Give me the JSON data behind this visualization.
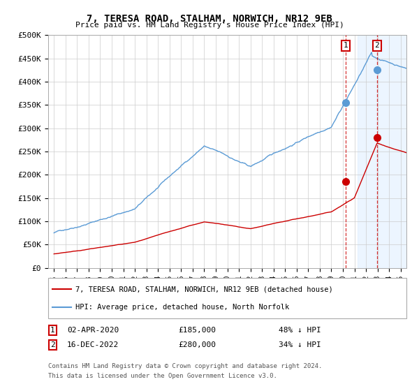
{
  "title": "7, TERESA ROAD, STALHAM, NORWICH, NR12 9EB",
  "subtitle": "Price paid vs. HM Land Registry's House Price Index (HPI)",
  "ylim": [
    0,
    500000
  ],
  "yticks": [
    0,
    50000,
    100000,
    150000,
    200000,
    250000,
    300000,
    350000,
    400000,
    450000,
    500000
  ],
  "ytick_labels": [
    "£0",
    "£50K",
    "£100K",
    "£150K",
    "£200K",
    "£250K",
    "£300K",
    "£350K",
    "£400K",
    "£450K",
    "£500K"
  ],
  "hpi_color": "#5b9bd5",
  "price_color": "#cc0000",
  "shade_color": "#ddeeff",
  "shade_alpha": 0.55,
  "marker1_x": 2020.25,
  "marker1_price": 185000,
  "marker1_hpi": 355000,
  "marker2_x": 2022.96,
  "marker2_price": 280000,
  "marker2_hpi": 425000,
  "shade_start": 2021.3,
  "shade_end": 2025.5,
  "xlim_left": 1994.5,
  "xlim_right": 2025.5,
  "xtick_years": [
    1995,
    1996,
    1997,
    1998,
    1999,
    2000,
    2001,
    2002,
    2003,
    2004,
    2005,
    2006,
    2007,
    2008,
    2009,
    2010,
    2011,
    2012,
    2013,
    2014,
    2015,
    2016,
    2017,
    2018,
    2019,
    2020,
    2021,
    2022,
    2023,
    2024,
    2025
  ],
  "legend_line1": "7, TERESA ROAD, STALHAM, NORWICH, NR12 9EB (detached house)",
  "legend_line2": "HPI: Average price, detached house, North Norfolk",
  "table_row1_num": "1",
  "table_row1_date": "02-APR-2020",
  "table_row1_price": "£185,000",
  "table_row1_hpi": "48% ↓ HPI",
  "table_row2_num": "2",
  "table_row2_date": "16-DEC-2022",
  "table_row2_price": "£280,000",
  "table_row2_hpi": "34% ↓ HPI",
  "footnote1": "Contains HM Land Registry data © Crown copyright and database right 2024.",
  "footnote2": "This data is licensed under the Open Government Licence v3.0.",
  "background_color": "#ffffff",
  "grid_color": "#cccccc",
  "hpi_seed": 42
}
